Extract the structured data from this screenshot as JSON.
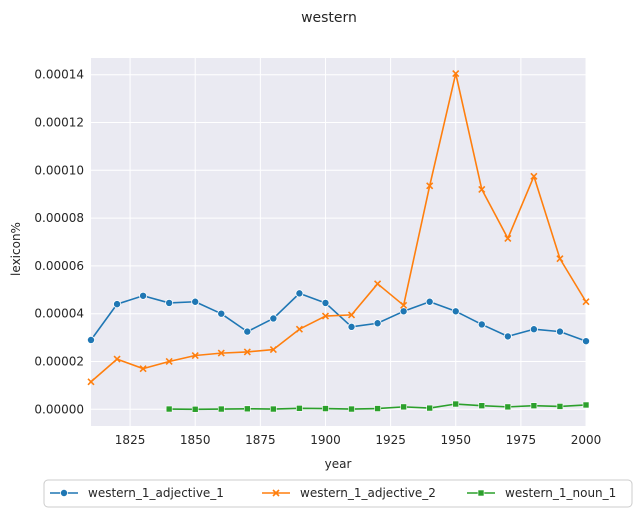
{
  "chart_data": {
    "type": "line",
    "title": "western",
    "xlabel": "year",
    "ylabel": "lexicon%",
    "xlim": [
      1810,
      2000
    ],
    "ylim": [
      -7e-06,
      0.000147
    ],
    "x_ticks": [
      1825,
      1850,
      1875,
      1900,
      1925,
      1950,
      1975,
      2000
    ],
    "y_ticks": [
      0,
      2e-05,
      4e-05,
      6e-05,
      8e-05,
      0.0001,
      0.00012,
      0.00014
    ],
    "y_tick_labels": [
      "0.00000",
      "0.00002",
      "0.00004",
      "0.00006",
      "0.00008",
      "0.00010",
      "0.00012",
      "0.00014"
    ],
    "grid": true,
    "legend_position": "bottom",
    "series": [
      {
        "name": "western_1_adjective_1",
        "color": "#1f77b4",
        "marker": "circle",
        "x": [
          1810,
          1820,
          1830,
          1840,
          1850,
          1860,
          1870,
          1880,
          1890,
          1900,
          1910,
          1920,
          1930,
          1940,
          1950,
          1960,
          1970,
          1980,
          1990,
          2000
        ],
        "y": [
          2.9e-05,
          4.4e-05,
          4.75e-05,
          4.45e-05,
          4.5e-05,
          4e-05,
          3.25e-05,
          3.8e-05,
          4.85e-05,
          4.45e-05,
          3.45e-05,
          3.6e-05,
          4.1e-05,
          4.5e-05,
          4.1e-05,
          3.55e-05,
          3.05e-05,
          3.35e-05,
          3.25e-05,
          2.85e-05
        ]
      },
      {
        "name": "western_1_adjective_2",
        "color": "#ff7f0e",
        "marker": "x",
        "x": [
          1810,
          1820,
          1830,
          1840,
          1850,
          1860,
          1870,
          1880,
          1890,
          1900,
          1910,
          1920,
          1930,
          1940,
          1950,
          1960,
          1970,
          1980,
          1990,
          2000
        ],
        "y": [
          1.15e-05,
          2.1e-05,
          1.7e-05,
          2e-05,
          2.25e-05,
          2.35e-05,
          2.4e-05,
          2.5e-05,
          3.35e-05,
          3.9e-05,
          3.95e-05,
          5.25e-05,
          4.35e-05,
          9.35e-05,
          0.0001405,
          9.2e-05,
          7.15e-05,
          9.75e-05,
          6.3e-05,
          4.5e-05
        ]
      },
      {
        "name": "western_1_noun_1",
        "color": "#2ca02c",
        "marker": "square",
        "x": [
          1840,
          1850,
          1860,
          1870,
          1880,
          1890,
          1900,
          1910,
          1920,
          1930,
          1940,
          1950,
          1960,
          1970,
          1980,
          1990,
          2000
        ],
        "y": [
          1e-07,
          0.0,
          1e-07,
          2e-07,
          1e-07,
          4e-07,
          3e-07,
          1e-07,
          3e-07,
          1e-06,
          5e-07,
          2.2e-06,
          1.5e-06,
          1e-06,
          1.5e-06,
          1.2e-06,
          1.8e-06
        ]
      }
    ]
  }
}
